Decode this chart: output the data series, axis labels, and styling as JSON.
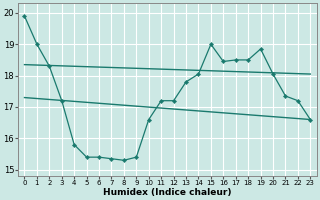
{
  "xlabel": "Humidex (Indice chaleur)",
  "bg_color": "#cce8e4",
  "grid_color": "#ffffff",
  "line_color": "#1a7a6e",
  "xlim": [
    -0.5,
    23.5
  ],
  "ylim": [
    14.8,
    20.3
  ],
  "xticks": [
    0,
    1,
    2,
    3,
    4,
    5,
    6,
    7,
    8,
    9,
    10,
    11,
    12,
    13,
    14,
    15,
    16,
    17,
    18,
    19,
    20,
    21,
    22,
    23
  ],
  "yticks": [
    15,
    16,
    17,
    18,
    19,
    20
  ],
  "line1_x": [
    0,
    1,
    2,
    3,
    4,
    5,
    6,
    7,
    8,
    9,
    10,
    11,
    12,
    13,
    14,
    15,
    16,
    17,
    18,
    19,
    20,
    21,
    22,
    23
  ],
  "line1_y": [
    19.9,
    19.0,
    18.3,
    17.2,
    15.8,
    15.4,
    15.4,
    15.35,
    15.3,
    15.4,
    16.6,
    17.2,
    17.2,
    17.8,
    18.05,
    19.0,
    18.45,
    18.5,
    18.5,
    18.85,
    18.05,
    17.35,
    17.2,
    16.6
  ],
  "line2_x": [
    0,
    23
  ],
  "line2_y": [
    18.35,
    18.05
  ],
  "line3_x": [
    0,
    23
  ],
  "line3_y": [
    17.3,
    16.6
  ]
}
